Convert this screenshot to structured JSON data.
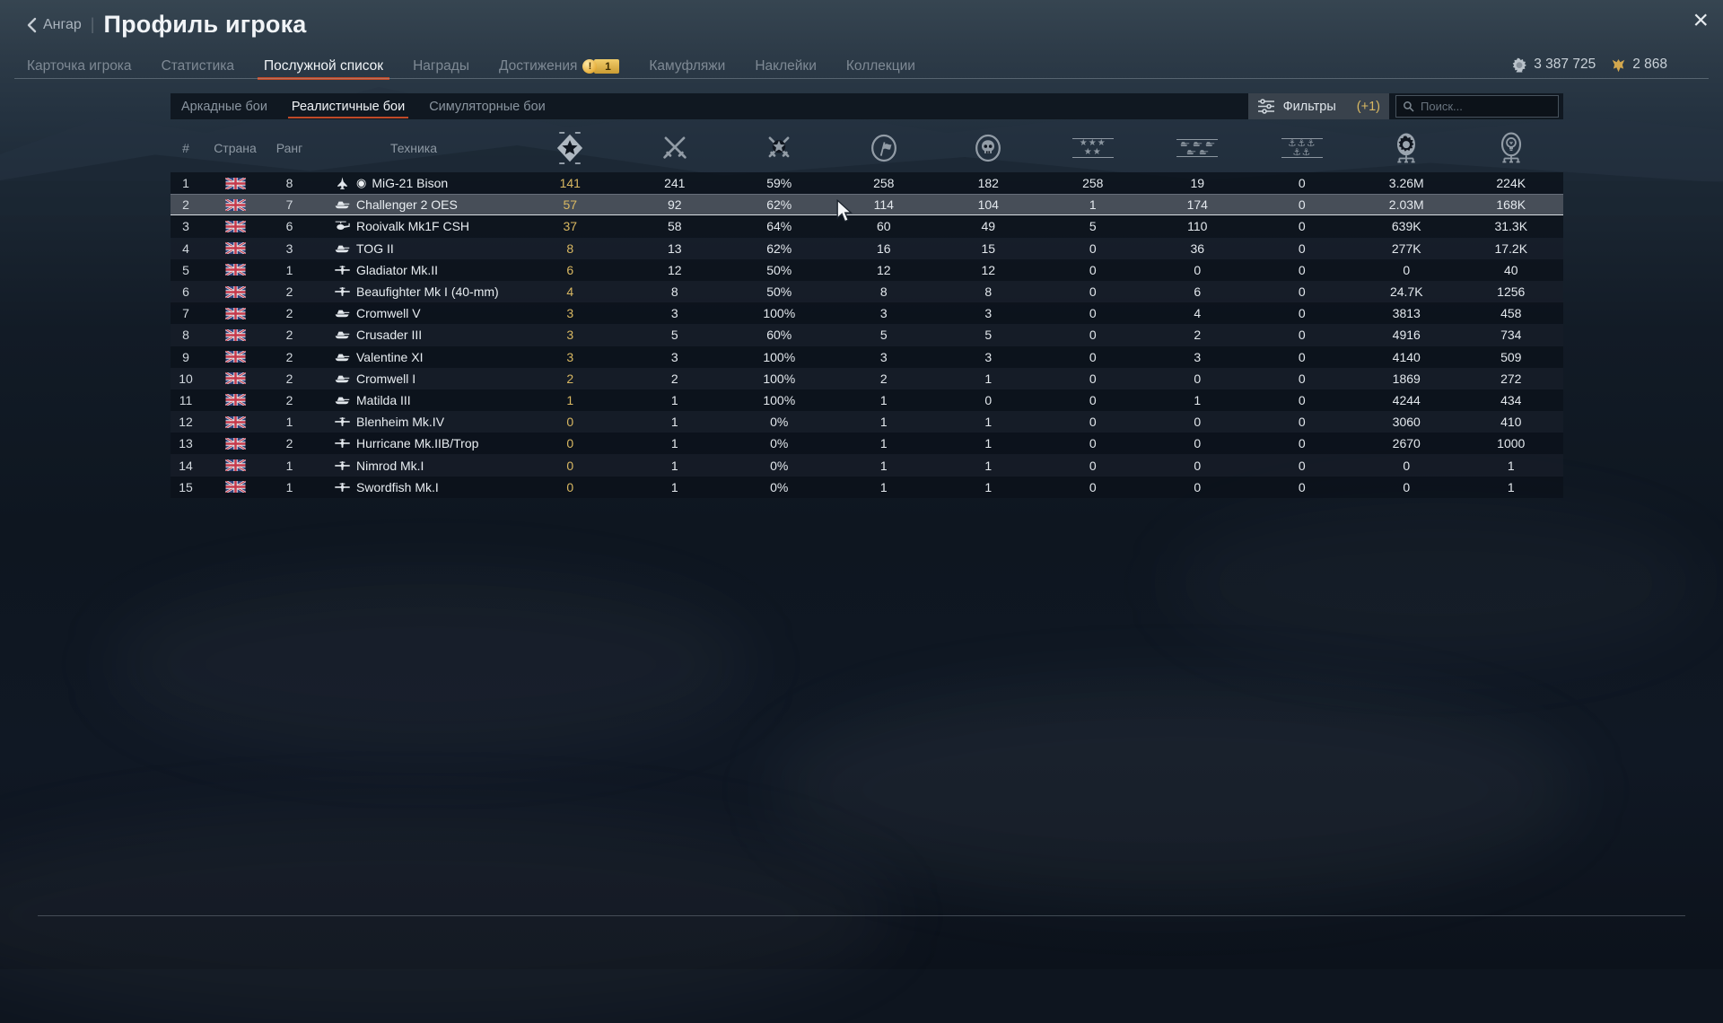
{
  "header": {
    "back_label": "Ангар",
    "separator": "|",
    "title": "Профиль игрока",
    "close_glyph": "×",
    "tabs": [
      {
        "label": "Карточка игрока"
      },
      {
        "label": "Статистика"
      },
      {
        "label": "Послужной список",
        "active": true
      },
      {
        "label": "Награды"
      },
      {
        "label": "Достижения",
        "badge_excl": "!",
        "badge_count": "1"
      },
      {
        "label": "Камуфляжи"
      },
      {
        "label": "Наклейки"
      },
      {
        "label": "Коллекции"
      }
    ],
    "currencies": {
      "silver_lions": "3 387 725",
      "golden_eagles": "2 868"
    }
  },
  "modes": {
    "tabs": [
      {
        "label": "Аркадные бои"
      },
      {
        "label": "Реалистичные бои",
        "active": true
      },
      {
        "label": "Симуляторные бои"
      }
    ]
  },
  "filters": {
    "label": "Фильтры",
    "counter": "(+1)"
  },
  "search": {
    "placeholder": "Поиск..."
  },
  "table": {
    "text_headers": {
      "num": "#",
      "country": "Страна",
      "rank": "Ранг",
      "vehicle": "Техника"
    },
    "stat_columns": [
      "wins-icon",
      "battles-icon",
      "winrate-icon",
      "sorties-flag-icon",
      "deaths-skull-icon",
      "air-targets-icon",
      "ground-targets-icon",
      "naval-targets-icon",
      "silver-lions-earned-icon",
      "research-points-icon"
    ],
    "country": "uk",
    "squadron_marker": "◉",
    "rows": [
      {
        "n": "1",
        "rank": "8",
        "type": "jet",
        "squadron": true,
        "name": "MiG-21 Bison",
        "stats": [
          "141",
          "241",
          "59%",
          "258",
          "182",
          "258",
          "19",
          "0",
          "3.26M",
          "224K"
        ]
      },
      {
        "n": "2",
        "rank": "7",
        "type": "tank",
        "highlighted": true,
        "name": "Challenger 2 OES",
        "stats": [
          "57",
          "92",
          "62%",
          "114",
          "104",
          "1",
          "174",
          "0",
          "2.03M",
          "168K"
        ]
      },
      {
        "n": "3",
        "rank": "6",
        "type": "helicopter",
        "name": "Rooivalk Mk1F CSH",
        "stats": [
          "37",
          "58",
          "64%",
          "60",
          "49",
          "5",
          "110",
          "0",
          "639K",
          "31.3K"
        ]
      },
      {
        "n": "4",
        "rank": "3",
        "type": "tank",
        "name": "TOG II",
        "stats": [
          "8",
          "13",
          "62%",
          "16",
          "15",
          "0",
          "36",
          "0",
          "277K",
          "17.2K"
        ]
      },
      {
        "n": "5",
        "rank": "1",
        "type": "plane",
        "name": "Gladiator Mk.II",
        "stats": [
          "6",
          "12",
          "50%",
          "12",
          "12",
          "0",
          "0",
          "0",
          "0",
          "40"
        ]
      },
      {
        "n": "6",
        "rank": "2",
        "type": "plane",
        "name": "Beaufighter Mk I (40-mm)",
        "stats": [
          "4",
          "8",
          "50%",
          "8",
          "8",
          "0",
          "6",
          "0",
          "24.7K",
          "1256"
        ]
      },
      {
        "n": "7",
        "rank": "2",
        "type": "tank",
        "name": "Cromwell V",
        "stats": [
          "3",
          "3",
          "100%",
          "3",
          "3",
          "0",
          "4",
          "0",
          "3813",
          "458"
        ]
      },
      {
        "n": "8",
        "rank": "2",
        "type": "tank",
        "name": "Crusader III",
        "stats": [
          "3",
          "5",
          "60%",
          "5",
          "5",
          "0",
          "2",
          "0",
          "4916",
          "734"
        ]
      },
      {
        "n": "9",
        "rank": "2",
        "type": "tank",
        "name": "Valentine XI",
        "stats": [
          "3",
          "3",
          "100%",
          "3",
          "3",
          "0",
          "3",
          "0",
          "4140",
          "509"
        ]
      },
      {
        "n": "10",
        "rank": "2",
        "type": "tank",
        "name": "Cromwell I",
        "stats": [
          "2",
          "2",
          "100%",
          "2",
          "1",
          "0",
          "0",
          "0",
          "1869",
          "272"
        ]
      },
      {
        "n": "11",
        "rank": "2",
        "type": "tank",
        "name": "Matilda III",
        "stats": [
          "1",
          "1",
          "100%",
          "1",
          "0",
          "0",
          "1",
          "0",
          "4244",
          "434"
        ]
      },
      {
        "n": "12",
        "rank": "1",
        "type": "plane",
        "name": "Blenheim Mk.IV",
        "stats": [
          "0",
          "1",
          "0%",
          "1",
          "1",
          "0",
          "0",
          "0",
          "3060",
          "410"
        ]
      },
      {
        "n": "13",
        "rank": "2",
        "type": "plane",
        "name": "Hurricane Mk.IIB/Trop",
        "stats": [
          "0",
          "1",
          "0%",
          "1",
          "1",
          "0",
          "0",
          "0",
          "2670",
          "1000"
        ]
      },
      {
        "n": "14",
        "rank": "1",
        "type": "plane",
        "name": "Nimrod Mk.I",
        "stats": [
          "0",
          "1",
          "0%",
          "1",
          "1",
          "0",
          "0",
          "0",
          "0",
          "1"
        ]
      },
      {
        "n": "15",
        "rank": "1",
        "type": "plane",
        "name": "Swordfish Mk.I",
        "stats": [
          "0",
          "1",
          "0%",
          "1",
          "1",
          "0",
          "0",
          "0",
          "0",
          "1"
        ]
      }
    ]
  },
  "colors": {
    "accent_orange": "#c04a28",
    "gold_text": "#d9b862",
    "row_highlight": "#474e58",
    "badge_gold": "#e7af3c"
  }
}
